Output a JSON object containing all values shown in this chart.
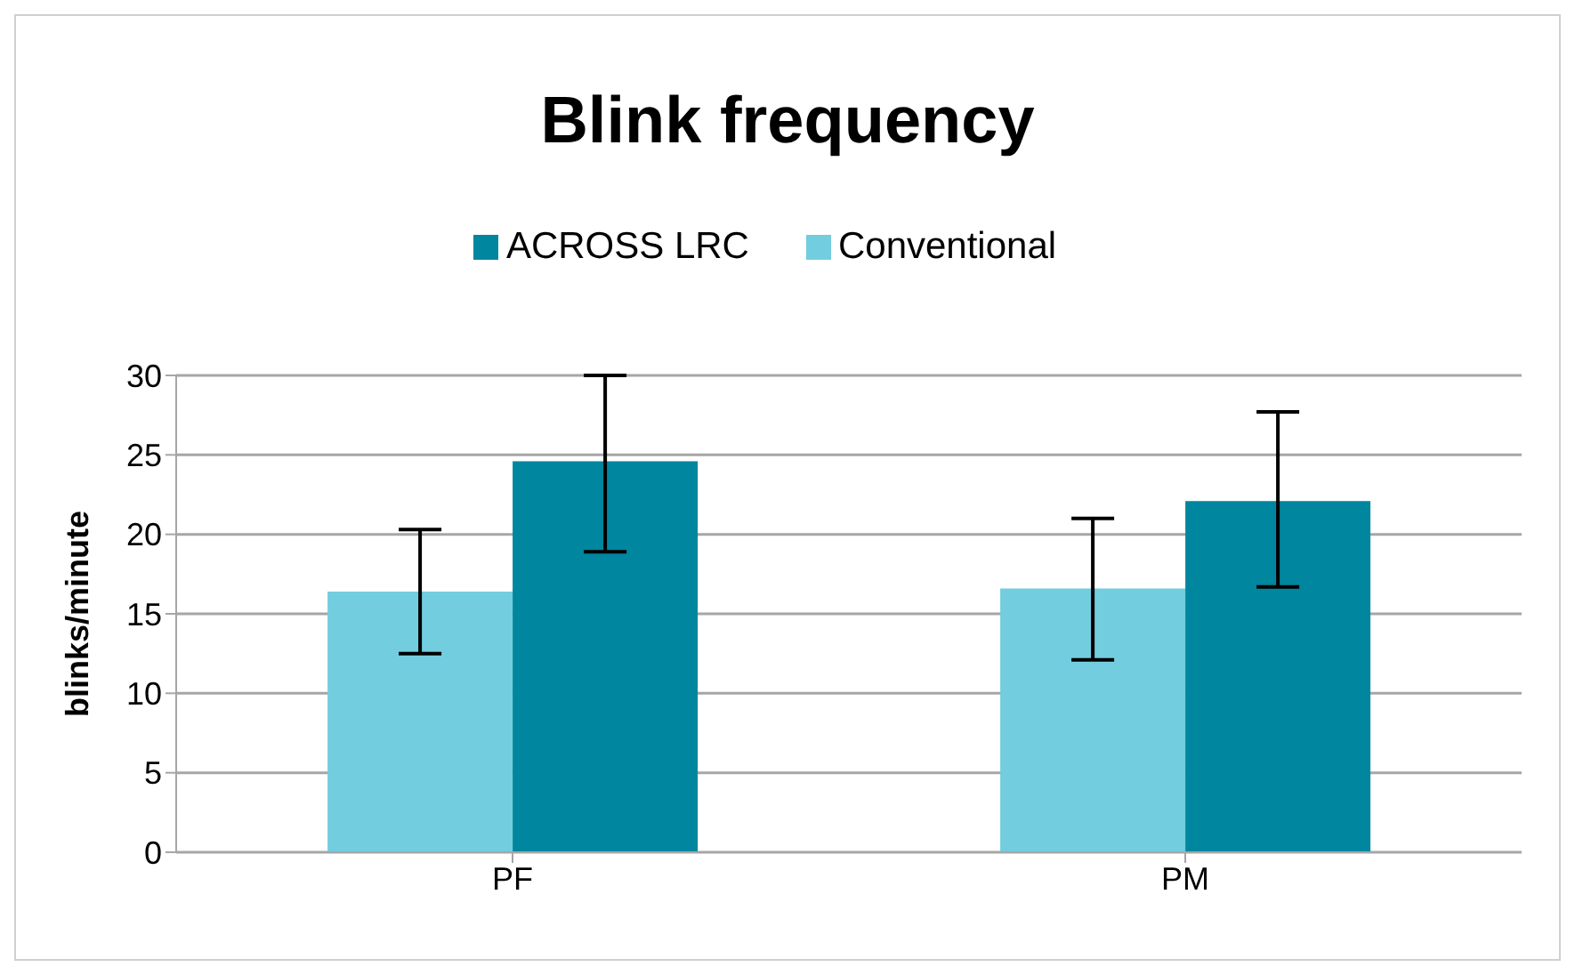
{
  "chart_data": {
    "type": "bar",
    "title": "Blink frequency",
    "ylabel": "blinks/minute",
    "categories": [
      "PF",
      "PM"
    ],
    "series": [
      {
        "name": "Conventional",
        "color": "#72cddf",
        "values": [
          16.4,
          16.6
        ],
        "errors": [
          [
            12.5,
            20.3
          ],
          [
            12.1,
            21.0
          ]
        ]
      },
      {
        "name": "ACROSS LRC",
        "color": "#00869e",
        "values": [
          24.6,
          22.1
        ],
        "errors": [
          [
            18.9,
            30
          ],
          [
            16.7,
            27.7
          ]
        ]
      }
    ],
    "ylim": [
      0,
      30
    ],
    "yticks": [
      0,
      5,
      10,
      15,
      20,
      25,
      30
    ],
    "grid": "y",
    "legend": "top"
  }
}
